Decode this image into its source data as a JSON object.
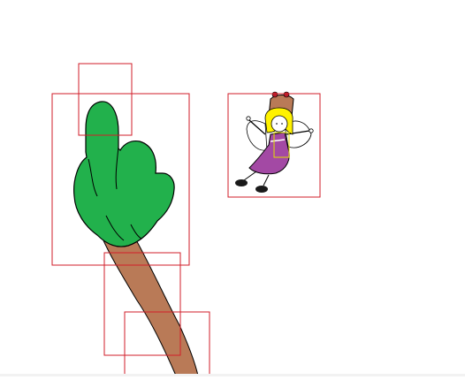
{
  "scene": {
    "background": "#ffffff",
    "objects": [
      "hand-sprite",
      "fairy-sprite"
    ],
    "hitbox_color": "#d21e28",
    "fairy_hitbox_color": "#e0e000"
  },
  "colors": {
    "hand": "#22b14c",
    "arm": "#b97a57",
    "dress": "#a349a4",
    "hat": "#b97a57",
    "hair": "#fff200",
    "wing": "#ffffff",
    "shoe": "#1a1a1a"
  }
}
